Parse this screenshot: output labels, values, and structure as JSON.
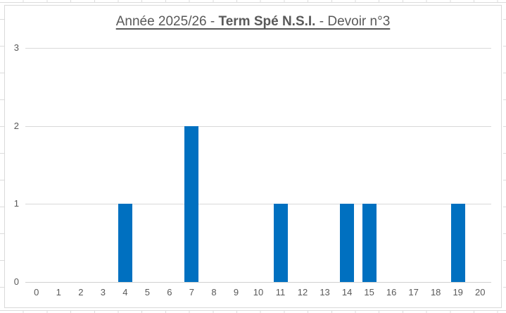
{
  "chart_data": {
    "type": "bar",
    "title": {
      "prefix": "Année 2025/26 - ",
      "bold": "Term Spé N.S.I.",
      "suffix": " - Devoir n°3",
      "full": "Année 2025/26 - Term Spé N.S.I. - Devoir n°3"
    },
    "categories": [
      "0",
      "1",
      "2",
      "3",
      "4",
      "5",
      "6",
      "7",
      "8",
      "9",
      "10",
      "11",
      "12",
      "13",
      "14",
      "15",
      "16",
      "17",
      "18",
      "19",
      "20"
    ],
    "values": [
      0,
      0,
      0,
      0,
      1,
      0,
      0,
      2,
      0,
      0,
      0,
      1,
      0,
      0,
      1,
      1,
      0,
      0,
      0,
      1,
      0
    ],
    "xlabel": "",
    "ylabel": "",
    "ylim": [
      0,
      3
    ],
    "yticks": [
      0,
      1,
      2,
      3
    ],
    "grid": true,
    "legend": false,
    "colors": {
      "bar": "#0070C0",
      "gridline": "#D9D9D9",
      "axis_line": "#D0D0D0",
      "text": "#595959",
      "chart_border": "#D9D9D9"
    }
  }
}
